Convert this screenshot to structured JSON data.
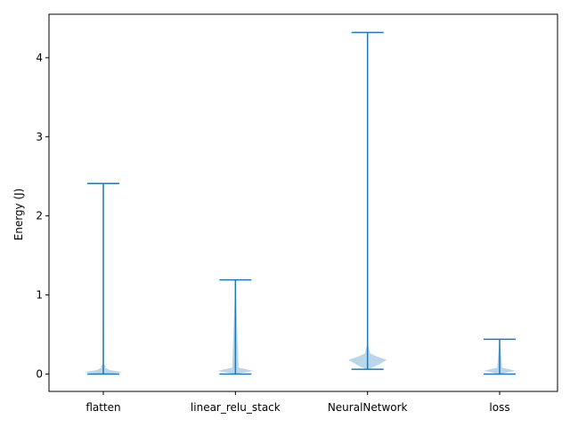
{
  "chart_data": {
    "type": "violin",
    "title": "",
    "xlabel": "",
    "ylabel": "Energy (J)",
    "ylim": [
      -0.22,
      4.55
    ],
    "yticks": [
      0,
      1,
      2,
      3,
      4
    ],
    "ytick_labels": [
      "0",
      "1",
      "2",
      "3",
      "4"
    ],
    "categories": [
      "flatten",
      "linear_relu_stack",
      "NeuralNetwork",
      "loss"
    ],
    "series": [
      {
        "category": "flatten",
        "min": 0.0,
        "max": 2.41,
        "mode": 0.02,
        "shape": [
          [
            0.0,
            0.0
          ],
          [
            0.01,
            0.35
          ],
          [
            0.02,
            0.6
          ],
          [
            0.03,
            0.5
          ],
          [
            0.05,
            0.2
          ],
          [
            0.08,
            0.06
          ],
          [
            0.1,
            0.08
          ],
          [
            0.12,
            0.02
          ],
          [
            2.41,
            0.0
          ]
        ]
      },
      {
        "category": "linear_relu_stack",
        "min": 0.0,
        "max": 1.19,
        "mode": 0.04,
        "shape": [
          [
            0.0,
            0.0
          ],
          [
            0.02,
            0.3
          ],
          [
            0.04,
            0.55
          ],
          [
            0.06,
            0.35
          ],
          [
            0.08,
            0.1
          ],
          [
            1.19,
            0.0
          ]
        ]
      },
      {
        "category": "NeuralNetwork",
        "min": 0.06,
        "max": 4.32,
        "mode": 0.18,
        "shape": [
          [
            0.06,
            0.0
          ],
          [
            0.08,
            0.15
          ],
          [
            0.12,
            0.35
          ],
          [
            0.18,
            0.6
          ],
          [
            0.22,
            0.3
          ],
          [
            0.26,
            0.08
          ],
          [
            0.32,
            0.05
          ],
          [
            0.38,
            0.0
          ],
          [
            4.32,
            0.0
          ]
        ]
      },
      {
        "category": "loss",
        "min": 0.0,
        "max": 0.44,
        "mode": 0.04,
        "shape": [
          [
            0.0,
            0.0
          ],
          [
            0.02,
            0.25
          ],
          [
            0.04,
            0.5
          ],
          [
            0.06,
            0.3
          ],
          [
            0.08,
            0.08
          ],
          [
            0.44,
            0.0
          ]
        ]
      }
    ],
    "grid": false,
    "colors": {
      "line": "#1f77b4",
      "body": "#1f77b4"
    }
  }
}
